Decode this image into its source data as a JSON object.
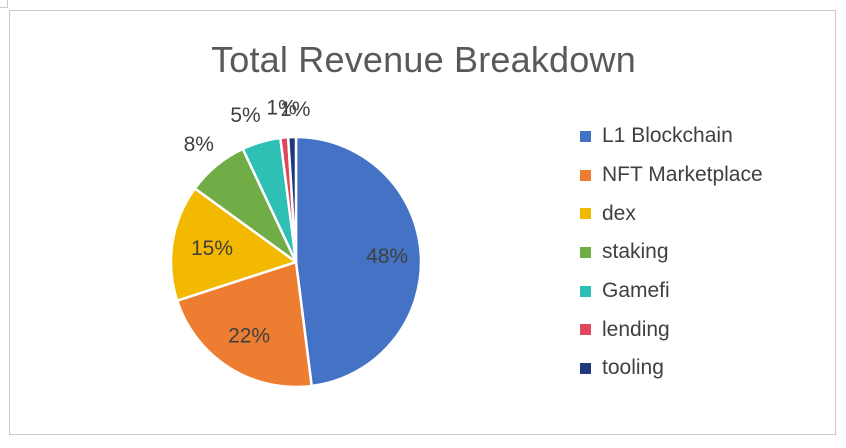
{
  "chart_data": {
    "type": "pie",
    "title": "Total Revenue Breakdown",
    "legend_position": "right",
    "slices": [
      {
        "name": "L1 Blockchain",
        "value": 48,
        "label": "48%",
        "color": "#4472C4"
      },
      {
        "name": "NFT Marketplace",
        "value": 22,
        "label": "22%",
        "color": "#ED7D31"
      },
      {
        "name": "dex",
        "value": 15,
        "label": "15%",
        "color": "#F3B800"
      },
      {
        "name": "staking",
        "value": 8,
        "label": "8%",
        "color": "#70AD47"
      },
      {
        "name": "Gamefi",
        "value": 5,
        "label": "5%",
        "color": "#2EBFB5"
      },
      {
        "name": "lending",
        "value": 1,
        "label": "1%",
        "color": "#E0475F"
      },
      {
        "name": "tooling",
        "value": 1,
        "label": "1%",
        "color": "#1F3A7A"
      }
    ]
  }
}
